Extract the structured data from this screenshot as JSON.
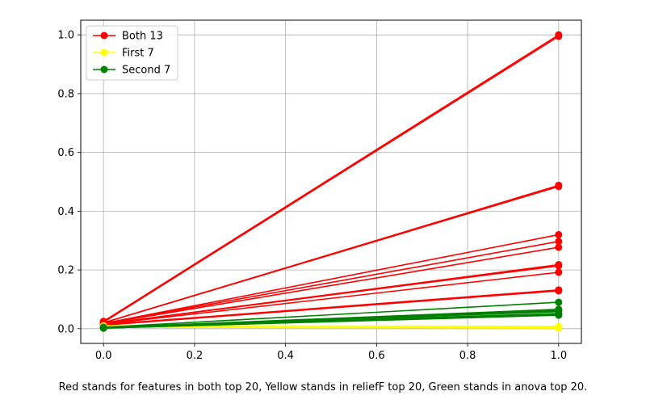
{
  "chart_data": {
    "type": "line",
    "xlim": [
      -0.05,
      1.05
    ],
    "ylim": [
      -0.05,
      1.05
    ],
    "xticks": [
      0.0,
      0.2,
      0.4,
      0.6,
      0.8,
      1.0
    ],
    "yticks": [
      0.0,
      0.2,
      0.4,
      0.6,
      0.8,
      1.0
    ],
    "xtick_labels": [
      "0.0",
      "0.2",
      "0.4",
      "0.6",
      "0.8",
      "1.0"
    ],
    "ytick_labels": [
      "0.0",
      "0.2",
      "0.4",
      "0.6",
      "0.8",
      "1.0"
    ],
    "grid": true,
    "legend_position": "top-left",
    "legend": [
      {
        "label": "Both 13",
        "color": "#ff0000"
      },
      {
        "label": "First 7",
        "color": "#ffff00"
      },
      {
        "label": "Second 7",
        "color": "#008000"
      }
    ],
    "groups": [
      {
        "name": "Both 13",
        "color": "#ff0000",
        "lines": [
          [
            [
              0,
              0.025
            ],
            [
              1,
              1.0
            ]
          ],
          [
            [
              0,
              0.022
            ],
            [
              1,
              0.995
            ]
          ],
          [
            [
              0,
              0.02
            ],
            [
              1,
              0.488
            ]
          ],
          [
            [
              0,
              0.02
            ],
            [
              1,
              0.484
            ]
          ],
          [
            [
              0,
              0.018
            ],
            [
              1,
              0.32
            ]
          ],
          [
            [
              0,
              0.018
            ],
            [
              1,
              0.297
            ]
          ],
          [
            [
              0,
              0.017
            ],
            [
              1,
              0.277
            ]
          ],
          [
            [
              0,
              0.016
            ],
            [
              1,
              0.218
            ]
          ],
          [
            [
              0,
              0.016
            ],
            [
              1,
              0.214
            ]
          ],
          [
            [
              0,
              0.015
            ],
            [
              1,
              0.192
            ]
          ],
          [
            [
              0,
              0.014
            ],
            [
              1,
              0.132
            ]
          ],
          [
            [
              0,
              0.013
            ],
            [
              1,
              0.13
            ]
          ],
          [
            [
              0,
              0.012
            ],
            [
              1,
              0.129
            ]
          ]
        ]
      },
      {
        "name": "First 7",
        "color": "#ffff00",
        "lines": [
          [
            [
              0,
              0.01
            ],
            [
              1,
              0.008
            ]
          ],
          [
            [
              0,
              0.009
            ],
            [
              1,
              0.007
            ]
          ],
          [
            [
              0,
              0.008
            ],
            [
              1,
              0.006
            ]
          ],
          [
            [
              0,
              0.008
            ],
            [
              1,
              0.005
            ]
          ],
          [
            [
              0,
              0.007
            ],
            [
              1,
              0.004
            ]
          ],
          [
            [
              0,
              0.006
            ],
            [
              1,
              0.003
            ]
          ],
          [
            [
              0,
              0.005
            ],
            [
              1,
              0.002
            ]
          ]
        ]
      },
      {
        "name": "Second 7",
        "color": "#008000",
        "lines": [
          [
            [
              0,
              0.005
            ],
            [
              1,
              0.09
            ]
          ],
          [
            [
              0,
              0.004
            ],
            [
              1,
              0.066
            ]
          ],
          [
            [
              0,
              0.004
            ],
            [
              1,
              0.062
            ]
          ],
          [
            [
              0,
              0.003
            ],
            [
              1,
              0.058
            ]
          ],
          [
            [
              0,
              0.003
            ],
            [
              1,
              0.052
            ]
          ],
          [
            [
              0,
              0.002
            ],
            [
              1,
              0.048
            ]
          ],
          [
            [
              0,
              0.002
            ],
            [
              1,
              0.046
            ]
          ]
        ]
      }
    ],
    "caption": "Red stands for features in both top 20, Yellow stands in reliefF top 20, Green stands in anova top 20."
  }
}
